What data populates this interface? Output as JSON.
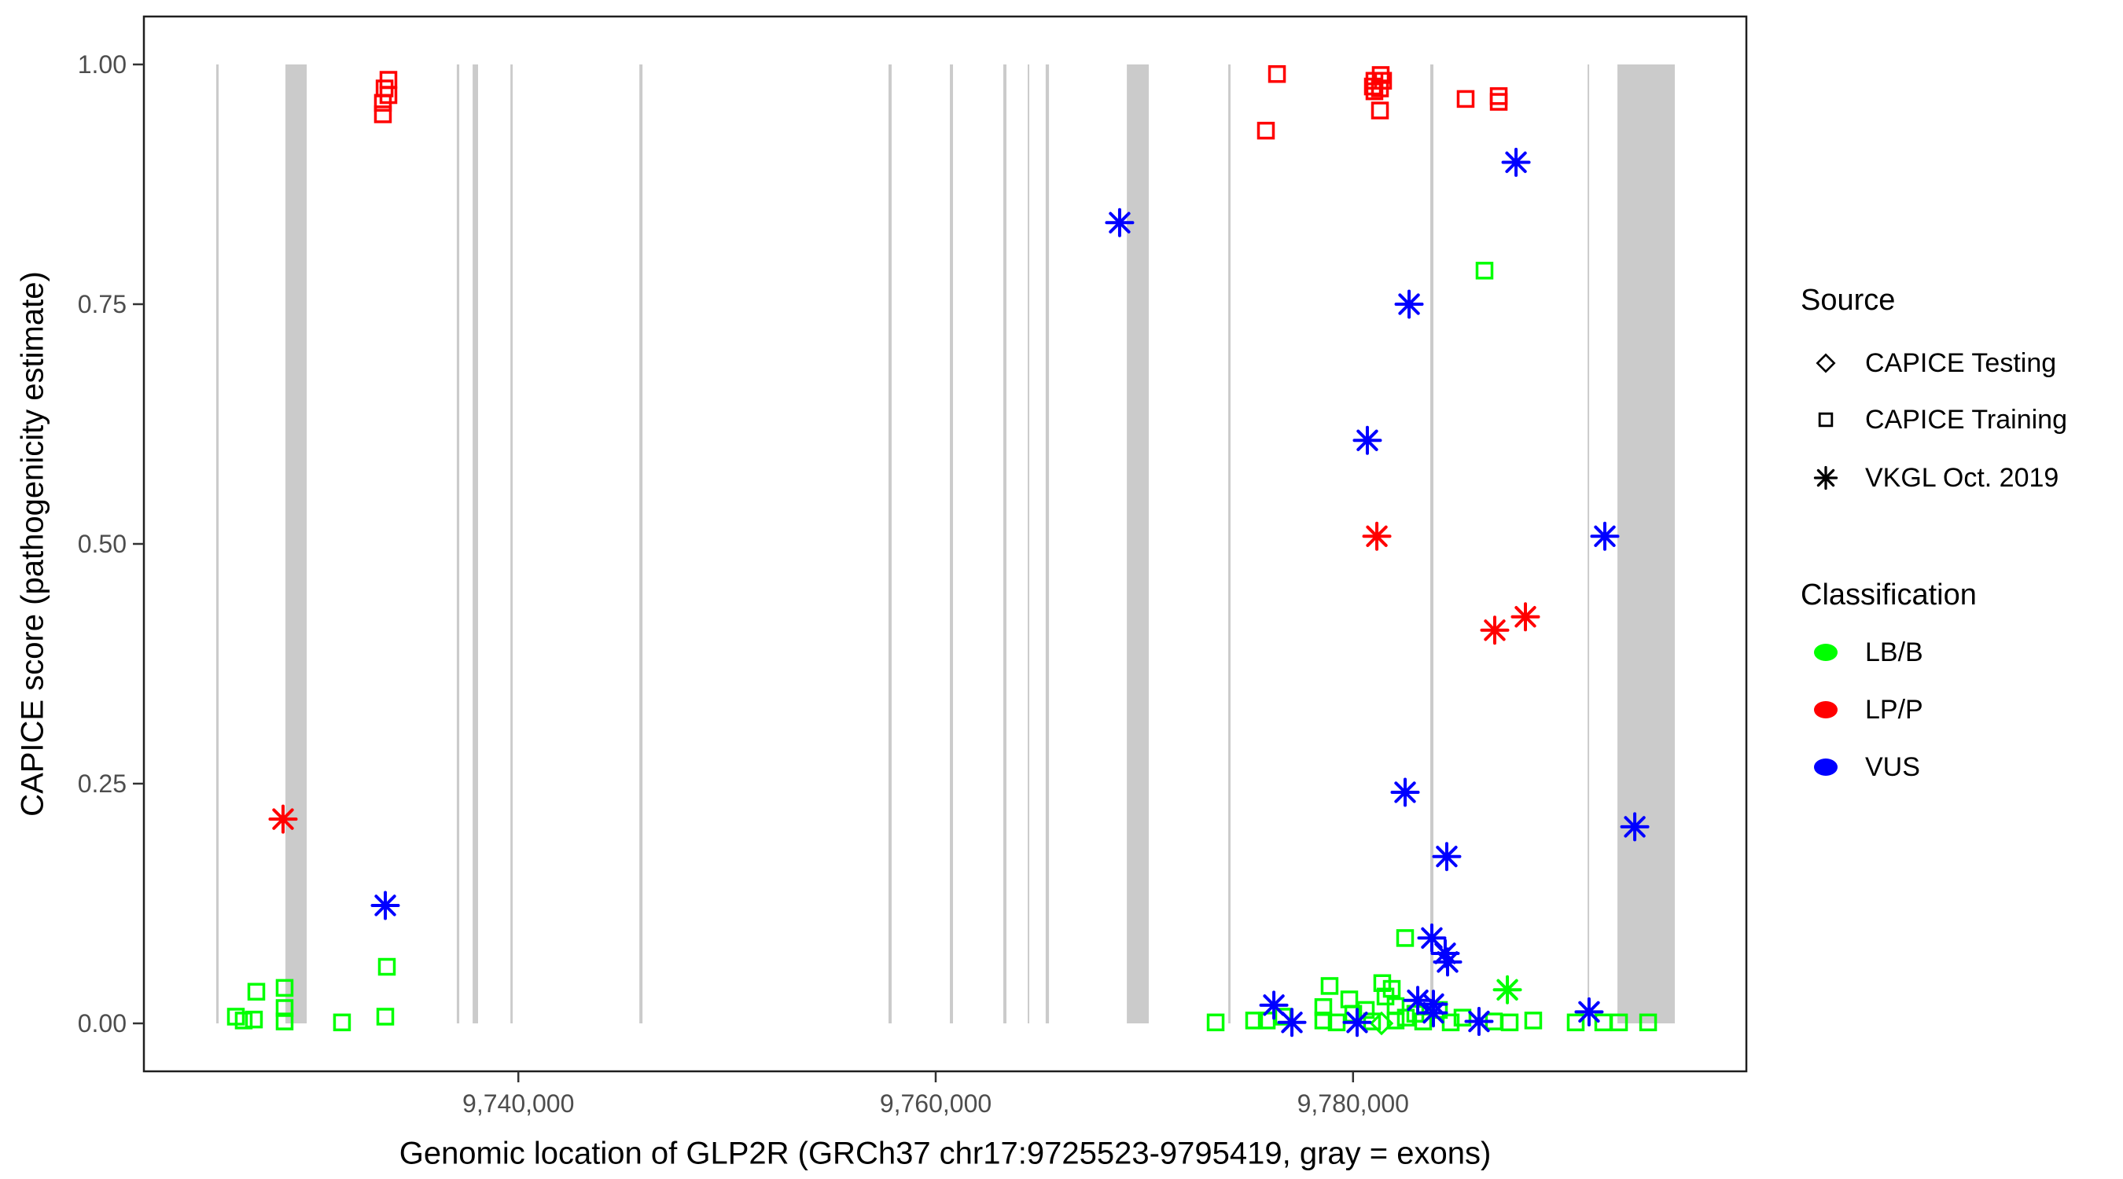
{
  "chart_data": {
    "type": "scatter",
    "title": "",
    "xlabel": "Genomic location of GLP2R (GRCh37 chr17:9725523-9795419, gray = exons)",
    "ylabel": "CAPICE score (pathogenicity estimate)",
    "x_domain": [
      9725523,
      9795419
    ],
    "y_domain": [
      0,
      1
    ],
    "grid": "off",
    "x_ticks": [
      {
        "value": 9740000,
        "label": "9,740,000"
      },
      {
        "value": 9760000,
        "label": "9,760,000"
      },
      {
        "value": 9780000,
        "label": "9,780,000"
      }
    ],
    "y_ticks": [
      {
        "value": 0.0,
        "label": "0.00"
      },
      {
        "value": 0.25,
        "label": "0.25"
      },
      {
        "value": 0.5,
        "label": "0.50"
      },
      {
        "value": 0.75,
        "label": "0.75"
      },
      {
        "value": 1.0,
        "label": "1.00"
      }
    ],
    "exon_color": "#CBCBCB",
    "exons": [
      [
        9725523,
        9725640
      ],
      [
        9728840,
        9729860
      ],
      [
        9737050,
        9737170
      ],
      [
        9737810,
        9738070
      ],
      [
        9739620,
        9739730
      ],
      [
        9745800,
        9745950
      ],
      [
        9757740,
        9757890
      ],
      [
        9760680,
        9760830
      ],
      [
        9763240,
        9763390
      ],
      [
        9764410,
        9764480
      ],
      [
        9765270,
        9765430
      ],
      [
        9769160,
        9770210
      ],
      [
        9774020,
        9774130
      ],
      [
        9783700,
        9783850
      ],
      [
        9791240,
        9791310
      ],
      [
        9792670,
        9795419
      ]
    ],
    "series": [
      {
        "name": "LB/B · CAPICE Training",
        "classification": "LB/B",
        "source": "CAPICE Training",
        "marker": "square",
        "color": "#00FF00",
        "points": [
          [
            9726465,
            0.007
          ],
          [
            9726840,
            0.003
          ],
          [
            9727330,
            0.004
          ],
          [
            9727445,
            0.033
          ],
          [
            9728800,
            0.037
          ],
          [
            9728800,
            0.016
          ],
          [
            9728800,
            0.002
          ],
          [
            9731550,
            0.001
          ],
          [
            9733625,
            0.007
          ],
          [
            9733700,
            0.059
          ],
          [
            9773415,
            0.001
          ],
          [
            9775260,
            0.003
          ],
          [
            9775865,
            0.003
          ],
          [
            9776655,
            0.007
          ],
          [
            9778575,
            0.017
          ],
          [
            9778575,
            0.003
          ],
          [
            9778875,
            0.039
          ],
          [
            9779215,
            0.001
          ],
          [
            9779820,
            0.025
          ],
          [
            9780010,
            0.01
          ],
          [
            9780610,
            0.014
          ],
          [
            9780910,
            0.002
          ],
          [
            9781400,
            0.042
          ],
          [
            9781555,
            0.028
          ],
          [
            9781855,
            0.036
          ],
          [
            9782040,
            0.018
          ],
          [
            9782040,
            0.003
          ],
          [
            9782495,
            0.089
          ],
          [
            9782530,
            0.006
          ],
          [
            9782985,
            0.01
          ],
          [
            9783360,
            0.002
          ],
          [
            9784115,
            0.014
          ],
          [
            9784680,
            0.001
          ],
          [
            9785245,
            0.006
          ],
          [
            9786300,
            0.785
          ],
          [
            9786750,
            0.002
          ],
          [
            9787505,
            0.001
          ],
          [
            9788635,
            0.003
          ],
          [
            9790670,
            0.001
          ],
          [
            9791990,
            0.001
          ],
          [
            9792745,
            0.001
          ],
          [
            9794140,
            0.001
          ]
        ]
      },
      {
        "name": "LB/B · CAPICE Testing",
        "classification": "LB/B",
        "source": "CAPICE Testing",
        "marker": "diamond",
        "color": "#00FF00",
        "points": [
          [
            9781365,
            0.0
          ]
        ]
      },
      {
        "name": "LB/B · VKGL Oct. 2019",
        "classification": "LB/B",
        "source": "VKGL Oct. 2019",
        "marker": "asterisk",
        "color": "#00FF00",
        "points": [
          [
            9787395,
            0.035
          ]
        ]
      },
      {
        "name": "LP/P · CAPICE Training",
        "classification": "LP/P",
        "source": "CAPICE Training",
        "marker": "square",
        "color": "#FF0000",
        "points": [
          [
            9733775,
            0.984
          ],
          [
            9733590,
            0.975
          ],
          [
            9733775,
            0.968
          ],
          [
            9733510,
            0.96
          ],
          [
            9733510,
            0.948
          ],
          [
            9775825,
            0.931
          ],
          [
            9776355,
            0.99
          ],
          [
            9780950,
            0.977
          ],
          [
            9781025,
            0.983
          ],
          [
            9781025,
            0.972
          ],
          [
            9781290,
            0.975
          ],
          [
            9781325,
            0.989
          ],
          [
            9781440,
            0.983
          ],
          [
            9781290,
            0.952
          ],
          [
            9785395,
            0.964
          ],
          [
            9786980,
            0.967
          ],
          [
            9786980,
            0.961
          ]
        ]
      },
      {
        "name": "LP/P · VKGL Oct. 2019",
        "classification": "LP/P",
        "source": "VKGL Oct. 2019",
        "marker": "asterisk",
        "color": "#FF0000",
        "points": [
          [
            9728725,
            0.213
          ],
          [
            9781140,
            0.508
          ],
          [
            9786790,
            0.41
          ],
          [
            9788260,
            0.424
          ]
        ]
      },
      {
        "name": "VUS · VKGL Oct. 2019",
        "classification": "VUS",
        "source": "VKGL Oct. 2019",
        "marker": "asterisk",
        "color": "#0000FF",
        "points": [
          [
            9733625,
            0.123
          ],
          [
            9768815,
            0.835
          ],
          [
            9780685,
            0.608
          ],
          [
            9782685,
            0.75
          ],
          [
            9787810,
            0.898
          ],
          [
            9792065,
            0.508
          ],
          [
            9793500,
            0.205
          ],
          [
            9782495,
            0.241
          ],
          [
            9784490,
            0.174
          ],
          [
            9783775,
            0.089
          ],
          [
            9784415,
            0.073
          ],
          [
            9784530,
            0.064
          ],
          [
            9776205,
            0.019
          ],
          [
            9777070,
            0.001
          ],
          [
            9780195,
            0.001
          ],
          [
            9783100,
            0.024
          ],
          [
            9783850,
            0.02
          ],
          [
            9783850,
            0.011
          ],
          [
            9786035,
            0.002
          ],
          [
            9791310,
            0.012
          ]
        ]
      }
    ],
    "legend_position": "right"
  },
  "legend": {
    "source": {
      "title": "Source",
      "items": [
        {
          "label": "CAPICE Testing",
          "marker": "diamond"
        },
        {
          "label": "CAPICE Training",
          "marker": "square"
        },
        {
          "label": "VKGL Oct. 2019",
          "marker": "asterisk"
        }
      ]
    },
    "classification": {
      "title": "Classification",
      "items": [
        {
          "label": "LB/B",
          "color": "#00FF00"
        },
        {
          "label": "LP/P",
          "color": "#FF0000"
        },
        {
          "label": "VUS",
          "color": "#0000FF"
        }
      ]
    }
  },
  "axes": {
    "x_title": "Genomic location of GLP2R (GRCh37 chr17:9725523-9795419, gray = exons)",
    "y_title": "CAPICE score (pathogenicity estimate)"
  },
  "colors": {
    "exon": "#CBCBCB",
    "tick_label": "#4D4D4D",
    "panel_border": "#1F1F1F",
    "lb_b": "#00FF00",
    "lp_p": "#FF0000",
    "vus": "#0000FF"
  }
}
